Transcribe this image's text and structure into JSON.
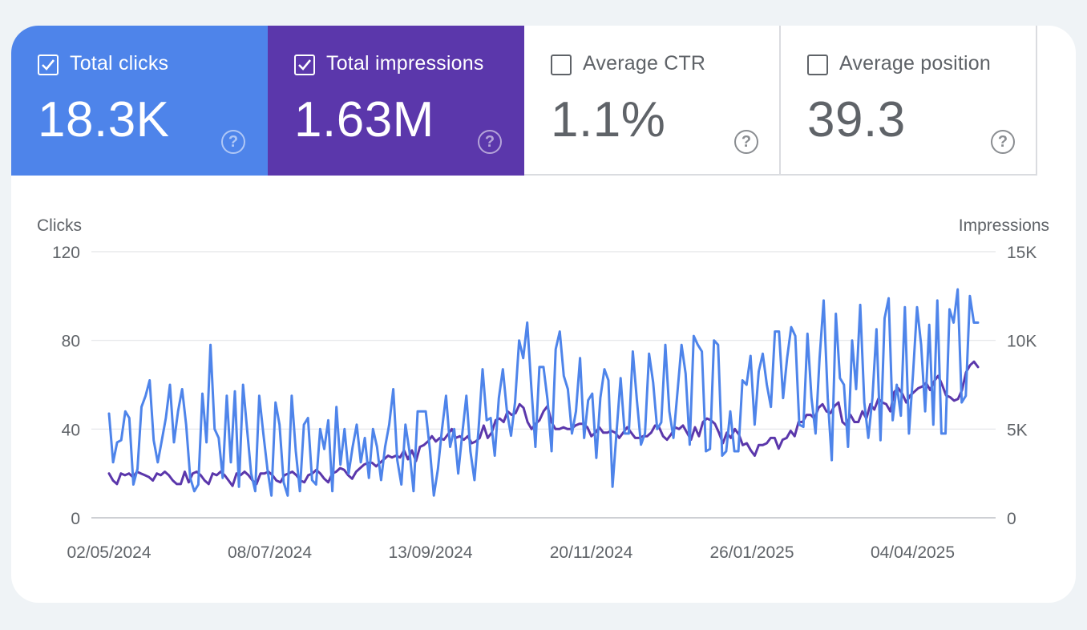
{
  "metrics": [
    {
      "label": "Total clicks",
      "value": "18.3K",
      "checked": true,
      "color": "#4e84ea"
    },
    {
      "label": "Total impressions",
      "value": "1.63M",
      "checked": true,
      "color": "#5b37ab"
    },
    {
      "label": "Average CTR",
      "value": "1.1%",
      "checked": false
    },
    {
      "label": "Average position",
      "value": "39.3",
      "checked": false
    }
  ],
  "help_glyph": "?",
  "chart_data": {
    "type": "line",
    "left_axis": {
      "title": "Clicks",
      "ticks": [
        "0",
        "40",
        "80",
        "120"
      ],
      "ylim": [
        0,
        120
      ]
    },
    "right_axis": {
      "title": "Impressions",
      "ticks": [
        "0",
        "5K",
        "10K",
        "15K"
      ],
      "ylim": [
        0,
        15000
      ]
    },
    "x_tick_labels": [
      "02/05/2024",
      "08/07/2024",
      "13/09/2024",
      "20/11/2024",
      "26/01/2025",
      "04/04/2025"
    ],
    "x_range": [
      "02/05/2024",
      "28/04/2025"
    ],
    "grid": true,
    "series": [
      {
        "name": "Total clicks",
        "axis": "left",
        "color": "#4e84ea",
        "values": [
          47,
          25,
          34,
          35,
          48,
          45,
          15,
          22,
          50,
          55,
          62,
          35,
          25,
          35,
          45,
          60,
          34,
          48,
          58,
          42,
          18,
          12,
          15,
          56,
          34,
          78,
          40,
          36,
          18,
          55,
          25,
          57,
          14,
          60,
          40,
          20,
          12,
          55,
          38,
          22,
          10,
          52,
          42,
          16,
          10,
          55,
          30,
          12,
          42,
          45,
          17,
          15,
          40,
          31,
          44,
          12,
          50,
          24,
          40,
          20,
          32,
          42,
          25,
          36,
          18,
          40,
          32,
          17,
          32,
          42,
          58,
          26,
          15,
          42,
          30,
          12,
          48,
          48,
          48,
          31,
          10,
          22,
          40,
          55,
          32,
          40,
          20,
          38,
          55,
          30,
          17,
          40,
          67,
          44,
          45,
          28,
          54,
          67,
          48,
          37,
          52,
          80,
          72,
          88,
          59,
          32,
          68,
          68,
          53,
          30,
          76,
          84,
          64,
          58,
          38,
          48,
          72,
          36,
          53,
          56,
          27,
          54,
          67,
          62,
          14,
          39,
          63,
          38,
          38,
          75,
          53,
          33,
          38,
          74,
          61,
          40,
          43,
          78,
          48,
          36,
          57,
          78,
          65,
          33,
          82,
          78,
          75,
          30,
          31,
          80,
          78,
          28,
          30,
          48,
          30,
          30,
          62,
          60,
          73,
          42,
          66,
          74,
          60,
          50,
          84,
          84,
          54,
          72,
          86,
          82,
          42,
          41,
          83,
          54,
          38,
          72,
          98,
          54,
          26,
          92,
          63,
          60,
          32,
          80,
          58,
          96,
          52,
          36,
          54,
          85,
          35,
          90,
          99,
          44,
          60,
          46,
          95,
          38,
          65,
          95,
          78,
          48,
          87,
          42,
          98,
          38,
          38,
          94,
          88,
          103,
          52,
          55,
          100,
          88,
          88
        ]
      },
      {
        "name": "Total impressions",
        "axis": "right",
        "color": "#5b37ab",
        "values": [
          2500,
          2100,
          1900,
          2500,
          2400,
          2500,
          2300,
          2600,
          2500,
          2400,
          2300,
          2100,
          2500,
          2400,
          2600,
          2400,
          2100,
          1900,
          1900,
          2600,
          2000,
          2500,
          2600,
          2400,
          2100,
          1900,
          2500,
          2400,
          2600,
          2400,
          2100,
          1800,
          2500,
          2400,
          2600,
          2400,
          2100,
          1900,
          2500,
          2500,
          2600,
          2400,
          2100,
          2000,
          2400,
          2500,
          2600,
          2400,
          2100,
          2000,
          2400,
          2500,
          2700,
          2500,
          2200,
          2000,
          2500,
          2600,
          2800,
          2700,
          2400,
          2200,
          2600,
          2800,
          3000,
          3100,
          3100,
          2900,
          3100,
          3300,
          3500,
          3400,
          3500,
          3400,
          3800,
          3300,
          3800,
          3200,
          4000,
          4100,
          4300,
          4600,
          4300,
          4500,
          4400,
          4700,
          5000,
          4500,
          4600,
          4400,
          4600,
          4200,
          4300,
          4500,
          5200,
          4500,
          4800,
          5500,
          5600,
          5400,
          6000,
          5800,
          5900,
          6400,
          6200,
          5400,
          5000,
          5300,
          5500,
          6000,
          6300,
          5400,
          5000,
          5000,
          5100,
          5000,
          5000,
          5200,
          5300,
          5300,
          5100,
          4600,
          4800,
          5100,
          4800,
          4800,
          4900,
          4800,
          4500,
          4800,
          5100,
          4800,
          4500,
          4500,
          4600,
          4600,
          4800,
          5200,
          5100,
          4600,
          4400,
          4700,
          5100,
          5000,
          5200,
          4800,
          4400,
          5100,
          4600,
          5400,
          5600,
          5500,
          5300,
          4800,
          4200,
          4800,
          4500,
          5000,
          4700,
          4100,
          4200,
          3800,
          3500,
          4100,
          4100,
          4200,
          4500,
          4500,
          3900,
          4400,
          4500,
          4900,
          4600,
          5400,
          5400,
          5800,
          5800,
          5600,
          6200,
          6400,
          6000,
          5900,
          6300,
          6500,
          5400,
          5200,
          5800,
          5400,
          5400,
          6000,
          5600,
          6400,
          6100,
          6700,
          6500,
          6400,
          6000,
          7100,
          7300,
          7000,
          6500,
          6900,
          7100,
          7300,
          7400,
          7600,
          7200,
          7700,
          8000,
          7500,
          6900,
          6800,
          6600,
          6700,
          7200,
          8200,
          8600,
          8800,
          8500
        ]
      }
    ]
  }
}
